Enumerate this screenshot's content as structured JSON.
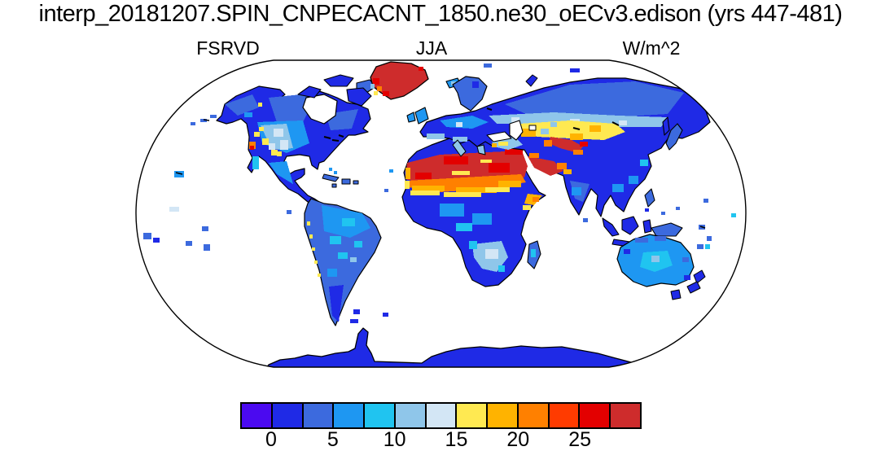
{
  "title": "interp_20181207.SPIN_CNPECACNT_1850.ne30_oECv3.edison (yrs 447-481)",
  "labels": {
    "variable": "FSRVD",
    "season": "JJA",
    "units": "W/m^2"
  },
  "chart_data": {
    "type": "heatmap",
    "title": "interp_20181207.SPIN_CNPECACNT_1850.ne30_oECv3.edison (yrs 447-481)",
    "variable": "FSRVD",
    "season": "JJA",
    "units": "W/m^2",
    "years_label": "yrs 447-481",
    "projection": "Robinson",
    "ocean_masked": "land-only field, oceans blank (white)",
    "contour_interval": 2.5,
    "levels": [
      0,
      2.5,
      5,
      7.5,
      10,
      12.5,
      15,
      17.5,
      20,
      22.5,
      25,
      27.5
    ],
    "colorbar": {
      "orientation": "horizontal",
      "n_segments": 13,
      "segment_colors": [
        "#4B0AF0",
        "#1F2AE6",
        "#3C6ADE",
        "#1E97F2",
        "#20C4F0",
        "#8FC6EA",
        "#D3E6F5",
        "#FFE951",
        "#FFB300",
        "#FF8000",
        "#FF3B00",
        "#E30000",
        "#CE2C2C"
      ],
      "tick_labels": [
        "0",
        "5",
        "10",
        "15",
        "20",
        "25"
      ],
      "tick_values": [
        0,
        5,
        10,
        15,
        20,
        25
      ]
    },
    "regions": [
      {
        "region": "Greenland",
        "approx_value_wm2": "> 27.5 (top color class)"
      },
      {
        "region": "Sahara Desert",
        "approx_value_wm2": "25 to > 27.5"
      },
      {
        "region": "Arabian Peninsula",
        "approx_value_wm2": "25 to > 27.5"
      },
      {
        "region": "Middle East / Iran / Afghanistan",
        "approx_value_wm2": "20 - 27.5"
      },
      {
        "region": "Tarim Basin",
        "approx_value_wm2": "25 - 27.5"
      },
      {
        "region": "Central Asia steppe belt",
        "approx_value_wm2": "15 - 22.5"
      },
      {
        "region": "Western United States (patchy)",
        "approx_value_wm2": "10 - 20"
      },
      {
        "region": "Mediterranean rim / Anatolia",
        "approx_value_wm2": "10 - 17.5"
      },
      {
        "region": "Southern Africa interior",
        "approx_value_wm2": "10 - 15"
      },
      {
        "region": "Australia interior",
        "approx_value_wm2": "5 - 10"
      },
      {
        "region": "Amazon, Congo, India, SE Asia",
        "approx_value_wm2": "2.5 - 7.5"
      },
      {
        "region": "High-latitude Canada and Siberia",
        "approx_value_wm2": "0 - 5"
      },
      {
        "region": "Antarctica",
        "approx_value_wm2": "0 - 2.5"
      },
      {
        "region": "Oceans",
        "approx_value_wm2": "no data (white)"
      }
    ]
  },
  "palette": {
    "v0": "#4B0AF0",
    "v1": "#1F2AE6",
    "v2": "#3C6ADE",
    "v3": "#1E97F2",
    "v4": "#20C4F0",
    "v5": "#8FC6EA",
    "v6": "#D3E6F5",
    "v7": "#FFE951",
    "v8": "#FFB300",
    "v9": "#FF8000",
    "v10": "#FF3B00",
    "v11": "#E30000",
    "v12": "#CE2C2C",
    "coastline": "#000000",
    "map_background": "#FFFFFF"
  }
}
